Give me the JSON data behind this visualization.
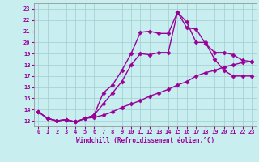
{
  "xlabel": "Windchill (Refroidissement éolien,°C)",
  "background_color": "#c8eef0",
  "grid_color": "#a0ccd0",
  "line_color": "#990099",
  "xlim": [
    -0.5,
    23.5
  ],
  "ylim": [
    12.5,
    23.5
  ],
  "xticks": [
    0,
    1,
    2,
    3,
    4,
    5,
    6,
    7,
    8,
    9,
    10,
    11,
    12,
    13,
    14,
    15,
    16,
    17,
    18,
    19,
    20,
    21,
    22,
    23
  ],
  "yticks": [
    13,
    14,
    15,
    16,
    17,
    18,
    19,
    20,
    21,
    22,
    23
  ],
  "line1_x": [
    0,
    1,
    2,
    3,
    4,
    5,
    6,
    7,
    8,
    9,
    10,
    11,
    12,
    13,
    14,
    15,
    16,
    17,
    18,
    19,
    20,
    21,
    22,
    23
  ],
  "line1_y": [
    13.8,
    13.2,
    13.0,
    13.1,
    12.9,
    13.2,
    13.3,
    13.5,
    13.8,
    14.2,
    14.5,
    14.8,
    15.2,
    15.5,
    15.8,
    16.2,
    16.5,
    17.0,
    17.3,
    17.5,
    17.8,
    18.0,
    18.2,
    18.3
  ],
  "line2_x": [
    0,
    1,
    2,
    3,
    4,
    5,
    6,
    7,
    8,
    9,
    10,
    11,
    12,
    13,
    14,
    15,
    16,
    17,
    18,
    19,
    20,
    21,
    22,
    23
  ],
  "line2_y": [
    13.8,
    13.2,
    13.0,
    13.1,
    12.9,
    13.2,
    13.5,
    15.5,
    16.2,
    17.5,
    19.0,
    20.9,
    21.0,
    20.8,
    20.8,
    22.7,
    21.3,
    21.2,
    19.9,
    19.1,
    19.1,
    18.9,
    18.4,
    18.3
  ],
  "line3_x": [
    0,
    1,
    2,
    3,
    4,
    5,
    6,
    7,
    8,
    9,
    10,
    11,
    12,
    13,
    14,
    15,
    16,
    17,
    18,
    19,
    20,
    21,
    22,
    23
  ],
  "line3_y": [
    13.8,
    13.2,
    13.0,
    13.1,
    12.9,
    13.2,
    13.5,
    14.5,
    15.5,
    16.5,
    18.0,
    19.0,
    18.9,
    19.1,
    19.1,
    22.7,
    21.8,
    20.0,
    20.0,
    18.5,
    17.5,
    17.0,
    17.0,
    17.0
  ],
  "marker": "D",
  "marker_size": 2.5,
  "linewidth": 1.0
}
